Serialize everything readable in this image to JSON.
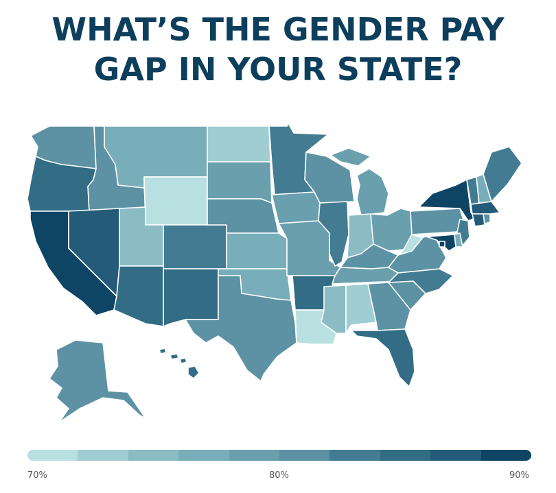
{
  "title": {
    "line1": "WHAT’S THE GENDER PAY",
    "line2": "GAP IN YOUR STATE?"
  },
  "colors": {
    "scale": [
      "#b9e0e1",
      "#a0cdd2",
      "#8bbcc4",
      "#78aeb9",
      "#6a9fae",
      "#5c92a4",
      "#437c92",
      "#326c85",
      "#235b78",
      "#0e4565"
    ],
    "state_border": "#ffffff",
    "title": "#0d3f5c"
  },
  "legend": {
    "min_label": "70%",
    "mid_label": "80%",
    "max_label": "90%",
    "steps": 10
  },
  "states": [
    {
      "id": "WA",
      "level": 5
    },
    {
      "id": "OR",
      "level": 7
    },
    {
      "id": "CA",
      "level": 9
    },
    {
      "id": "ID",
      "level": 5
    },
    {
      "id": "NV",
      "level": 8
    },
    {
      "id": "MT",
      "level": 3
    },
    {
      "id": "WY",
      "level": 0
    },
    {
      "id": "UT",
      "level": 2
    },
    {
      "id": "AZ",
      "level": 7
    },
    {
      "id": "CO",
      "level": 6
    },
    {
      "id": "NM",
      "level": 7
    },
    {
      "id": "ND",
      "level": 1
    },
    {
      "id": "SD",
      "level": 4
    },
    {
      "id": "NE",
      "level": 5
    },
    {
      "id": "KS",
      "level": 3
    },
    {
      "id": "OK",
      "level": 3
    },
    {
      "id": "TX",
      "level": 5
    },
    {
      "id": "MN",
      "level": 6
    },
    {
      "id": "IA",
      "level": 4
    },
    {
      "id": "MO",
      "level": 4
    },
    {
      "id": "AR",
      "level": 7
    },
    {
      "id": "LA",
      "level": 0
    },
    {
      "id": "WI",
      "level": 5
    },
    {
      "id": "IL",
      "level": 6
    },
    {
      "id": "MI",
      "level": 4
    },
    {
      "id": "IN",
      "level": 2
    },
    {
      "id": "OH",
      "level": 4
    },
    {
      "id": "KY",
      "level": 5
    },
    {
      "id": "TN",
      "level": 4
    },
    {
      "id": "MS",
      "level": 2
    },
    {
      "id": "AL",
      "level": 1
    },
    {
      "id": "GA",
      "level": 5
    },
    {
      "id": "FL",
      "level": 7
    },
    {
      "id": "SC",
      "level": 5
    },
    {
      "id": "NC",
      "level": 6
    },
    {
      "id": "VA",
      "level": 5
    },
    {
      "id": "WV",
      "level": 0
    },
    {
      "id": "PA",
      "level": 5
    },
    {
      "id": "NY",
      "level": 9
    },
    {
      "id": "VT",
      "level": 6
    },
    {
      "id": "NH",
      "level": 3
    },
    {
      "id": "ME",
      "level": 6
    },
    {
      "id": "MA",
      "level": 8
    },
    {
      "id": "CT",
      "level": 8
    },
    {
      "id": "RI",
      "level": 5
    },
    {
      "id": "NJ",
      "level": 6
    },
    {
      "id": "DE",
      "level": 3
    },
    {
      "id": "MD",
      "level": 9
    },
    {
      "id": "DC",
      "level": 9
    },
    {
      "id": "AK",
      "level": 5
    },
    {
      "id": "HI",
      "level": 7
    }
  ]
}
